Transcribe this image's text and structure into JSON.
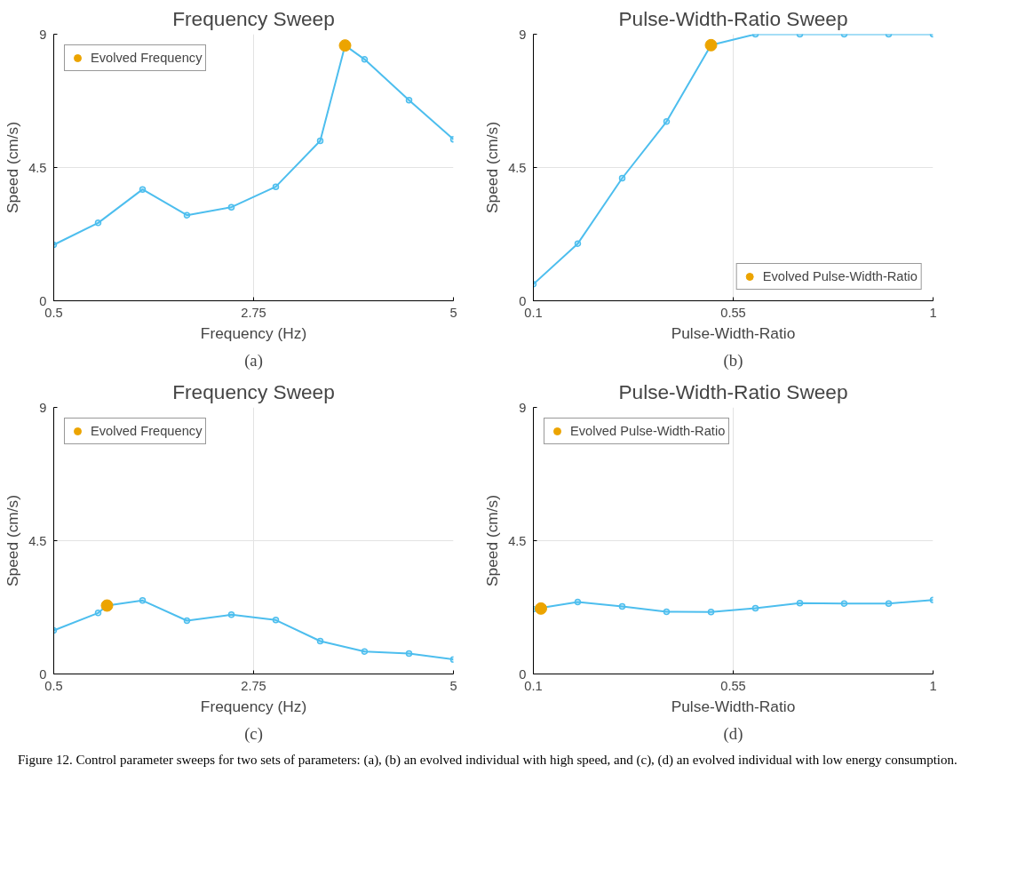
{
  "chart_data": [
    {
      "type": "line",
      "title": "Frequency Sweep",
      "xlabel": "Frequency (Hz)",
      "ylabel": "Speed (cm/s)",
      "xlim": [
        0.5,
        5
      ],
      "xticks": [
        0.5,
        2.75,
        5
      ],
      "ylim": [
        0,
        9
      ],
      "yticks": [
        0,
        4.5,
        9
      ],
      "grid": true,
      "legend": "top left",
      "annotations": [
        "(a)"
      ],
      "series": [
        {
          "marker": "circle",
          "color": "#4dbeee",
          "x": [
            0.5,
            1,
            1.5,
            2,
            2.5,
            3,
            3.5,
            3.78,
            4,
            4.5,
            5
          ],
          "values": [
            1.89,
            2.63,
            3.76,
            2.89,
            3.16,
            3.85,
            5.4,
            8.62,
            8.15,
            6.77,
            5.45
          ]
        },
        {
          "type": "scatter",
          "marker": "circle",
          "name": "Evolved Frequency",
          "color": "#eca400",
          "x": [
            3.78
          ],
          "values": [
            8.62
          ]
        }
      ]
    },
    {
      "type": "line",
      "title": "Pulse-Width-Ratio Sweep",
      "xlabel": "Pulse-Width-Ratio",
      "ylabel": "Speed (cm/s)",
      "xlim": [
        0.1,
        1
      ],
      "xticks": [
        0.1,
        0.55,
        1
      ],
      "ylim": [
        0,
        9
      ],
      "yticks": [
        0,
        4.5,
        9
      ],
      "grid": true,
      "legend": "bottom right",
      "annotations": [
        "(b)"
      ],
      "series": [
        {
          "marker": "circle",
          "color": "#4dbeee",
          "x": [
            0.1,
            0.2,
            0.3,
            0.4,
            0.5,
            0.6,
            0.7,
            0.8,
            0.9,
            1.0
          ],
          "values": [
            0.56,
            1.93,
            4.14,
            6.05,
            8.63,
            9.0,
            9.0,
            9.0,
            9.0,
            9.0
          ]
        },
        {
          "type": "scatter",
          "marker": "circle",
          "name": "Evolved Pulse-Width-Ratio",
          "color": "#eca400",
          "x": [
            0.5
          ],
          "values": [
            8.63
          ]
        }
      ]
    },
    {
      "type": "line",
      "title": "Frequency Sweep",
      "xlabel": "Frequency (Hz)",
      "ylabel": "Speed (cm/s)",
      "xlim": [
        0.5,
        5
      ],
      "xticks": [
        0.5,
        2.75,
        5
      ],
      "ylim": [
        0,
        9
      ],
      "yticks": [
        0,
        4.5,
        9
      ],
      "grid": true,
      "legend": "top left",
      "annotations": [
        "(c)"
      ],
      "series": [
        {
          "marker": "circle",
          "color": "#4dbeee",
          "x": [
            0.5,
            1,
            1.1,
            1.5,
            2,
            2.5,
            3,
            3.5,
            4,
            4.5,
            5
          ],
          "values": [
            1.47,
            2.06,
            2.31,
            2.48,
            1.8,
            2.0,
            1.82,
            1.11,
            0.76,
            0.69,
            0.49
          ]
        },
        {
          "type": "scatter",
          "marker": "circle",
          "name": "Evolved Frequency",
          "color": "#eca400",
          "x": [
            1.1
          ],
          "values": [
            2.31
          ]
        }
      ]
    },
    {
      "type": "line",
      "title": "Pulse-Width-Ratio Sweep",
      "xlabel": "Pulse-Width-Ratio",
      "ylabel": "Speed (cm/s)",
      "xlim": [
        0.1,
        1
      ],
      "xticks": [
        0.1,
        0.55,
        1
      ],
      "ylim": [
        0,
        9
      ],
      "yticks": [
        0,
        4.5,
        9
      ],
      "grid": true,
      "legend": "top left",
      "annotations": [
        "(d)",
        "Figure 12. Control parameter sweeps for two sets of parameters: (a), (b) an evolved individual with high speed, and (c), (d) an evolved individual with low energy consumption."
      ],
      "series": [
        {
          "marker": "circle",
          "color": "#4dbeee",
          "x": [
            0.1,
            0.2,
            0.3,
            0.4,
            0.5,
            0.6,
            0.7,
            0.8,
            0.9,
            1.0
          ],
          "values": [
            2.19,
            2.43,
            2.28,
            2.1,
            2.09,
            2.22,
            2.39,
            2.38,
            2.38,
            2.5
          ]
        },
        {
          "type": "scatter",
          "marker": "circle",
          "name": "Evolved Pulse-Width-Ratio",
          "color": "#eca400",
          "x": [
            0.117
          ],
          "values": [
            2.21
          ]
        }
      ]
    }
  ]
}
